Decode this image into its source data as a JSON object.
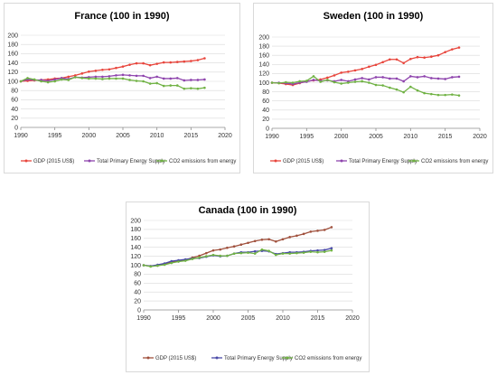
{
  "chart_data": [
    {
      "type": "line",
      "title": "France (100 in 1990)",
      "xlim": [
        1990,
        2020
      ],
      "ylim": [
        0,
        200
      ],
      "xticks": [
        "1990",
        "1995",
        "2000",
        "2005",
        "2010",
        "2015",
        "2020"
      ],
      "yticks": [
        "0",
        "20",
        "40",
        "60",
        "80",
        "100",
        "120",
        "140",
        "160",
        "180",
        "200"
      ],
      "grid": "horizontal",
      "legend": "bottom",
      "x": [
        1990,
        1991,
        1992,
        1993,
        1994,
        1995,
        1996,
        1997,
        1998,
        1999,
        2000,
        2001,
        2002,
        2003,
        2004,
        2005,
        2006,
        2007,
        2008,
        2009,
        2010,
        2011,
        2012,
        2013,
        2014,
        2015,
        2016,
        2017
      ],
      "series": [
        {
          "name": "GDP (2015 US$)",
          "color": "#e8453c",
          "values": [
            100,
            101,
            102,
            103,
            104,
            106,
            107,
            110,
            113,
            117,
            121,
            123,
            125,
            126,
            129,
            132,
            136,
            139,
            139,
            135,
            138,
            141,
            141,
            142,
            143,
            144,
            146,
            150
          ]
        },
        {
          "name": "Total Primary Energy Supply",
          "color": "#8e44ad",
          "values": [
            100,
            104,
            103,
            103,
            101,
            104,
            107,
            105,
            109,
            108,
            109,
            110,
            110,
            111,
            113,
            114,
            113,
            112,
            112,
            107,
            110,
            106,
            106,
            107,
            102,
            103,
            103,
            104
          ]
        },
        {
          "name": "CO2 emissions from energy",
          "color": "#70b244",
          "values": [
            100,
            107,
            104,
            100,
            98,
            100,
            104,
            103,
            109,
            107,
            106,
            106,
            105,
            106,
            106,
            106,
            103,
            101,
            100,
            95,
            96,
            90,
            91,
            91,
            84,
            85,
            84,
            86
          ]
        }
      ]
    },
    {
      "type": "line",
      "title": "Sweden (100 in 1990)",
      "xlim": [
        1990,
        2020
      ],
      "ylim": [
        0,
        200
      ],
      "xticks": [
        "1990",
        "1995",
        "2000",
        "2005",
        "2010",
        "2015",
        "2020"
      ],
      "yticks": [
        "0",
        "20",
        "40",
        "60",
        "80",
        "100",
        "120",
        "140",
        "160",
        "180",
        "200"
      ],
      "grid": "horizontal",
      "legend": "bottom",
      "x": [
        1990,
        1991,
        1992,
        1993,
        1994,
        1995,
        1996,
        1997,
        1998,
        1999,
        2000,
        2001,
        2002,
        2003,
        2004,
        2005,
        2006,
        2007,
        2008,
        2009,
        2010,
        2011,
        2012,
        2013,
        2014,
        2015,
        2016,
        2017
      ],
      "series": [
        {
          "name": "GDP (2015 US$)",
          "color": "#e8453c",
          "values": [
            100,
            99,
            97,
            95,
            99,
            103,
            105,
            107,
            111,
            116,
            122,
            124,
            127,
            130,
            135,
            139,
            145,
            151,
            151,
            143,
            152,
            156,
            155,
            157,
            160,
            167,
            173,
            177
          ]
        },
        {
          "name": "Total Primary Energy Supply",
          "color": "#8e44ad",
          "values": [
            100,
            100,
            99,
            97,
            100,
            102,
            106,
            104,
            105,
            103,
            106,
            103,
            107,
            110,
            107,
            112,
            112,
            109,
            109,
            103,
            114,
            112,
            114,
            110,
            109,
            108,
            112,
            113
          ]
        },
        {
          "name": "CO2 emissions from energy",
          "color": "#70b244",
          "values": [
            100,
            99,
            101,
            100,
            103,
            104,
            114,
            102,
            106,
            101,
            98,
            100,
            102,
            103,
            100,
            95,
            94,
            89,
            85,
            79,
            91,
            83,
            77,
            75,
            73,
            73,
            74,
            72
          ]
        }
      ]
    },
    {
      "type": "line",
      "title": "Canada  (100 in 1990)",
      "xlim": [
        1990,
        2020
      ],
      "ylim": [
        0,
        200
      ],
      "xticks": [
        "1990",
        "1995",
        "2000",
        "2005",
        "2010",
        "2015",
        "2020"
      ],
      "yticks": [
        "0",
        "20",
        "40",
        "60",
        "80",
        "100",
        "120",
        "140",
        "160",
        "180",
        "200"
      ],
      "grid": "horizontal",
      "legend": "bottom",
      "x": [
        1990,
        1991,
        1992,
        1993,
        1994,
        1995,
        1996,
        1997,
        1998,
        1999,
        2000,
        2001,
        2002,
        2003,
        2004,
        2005,
        2006,
        2007,
        2008,
        2009,
        2010,
        2011,
        2012,
        2013,
        2014,
        2015,
        2016,
        2017
      ],
      "series": [
        {
          "name": "GDP (2015 US$)",
          "color": "#a0503c",
          "values": [
            100,
            98,
            99,
            102,
            107,
            110,
            112,
            117,
            121,
            127,
            133,
            135,
            139,
            142,
            146,
            150,
            154,
            157,
            158,
            153,
            158,
            163,
            166,
            170,
            175,
            177,
            179,
            185
          ]
        },
        {
          "name": "Total Primary Energy Supply",
          "color": "#4a4aa8",
          "values": [
            100,
            98,
            101,
            104,
            109,
            111,
            113,
            115,
            116,
            119,
            122,
            120,
            121,
            126,
            129,
            129,
            131,
            132,
            131,
            125,
            127,
            129,
            129,
            130,
            132,
            133,
            134,
            138
          ]
        },
        {
          "name": "CO2 emissions from energy",
          "color": "#70b244",
          "values": [
            100,
            97,
            99,
            101,
            105,
            108,
            110,
            114,
            117,
            120,
            123,
            121,
            121,
            126,
            127,
            128,
            126,
            135,
            132,
            123,
            126,
            126,
            127,
            128,
            130,
            129,
            130,
            133
          ]
        }
      ]
    }
  ]
}
